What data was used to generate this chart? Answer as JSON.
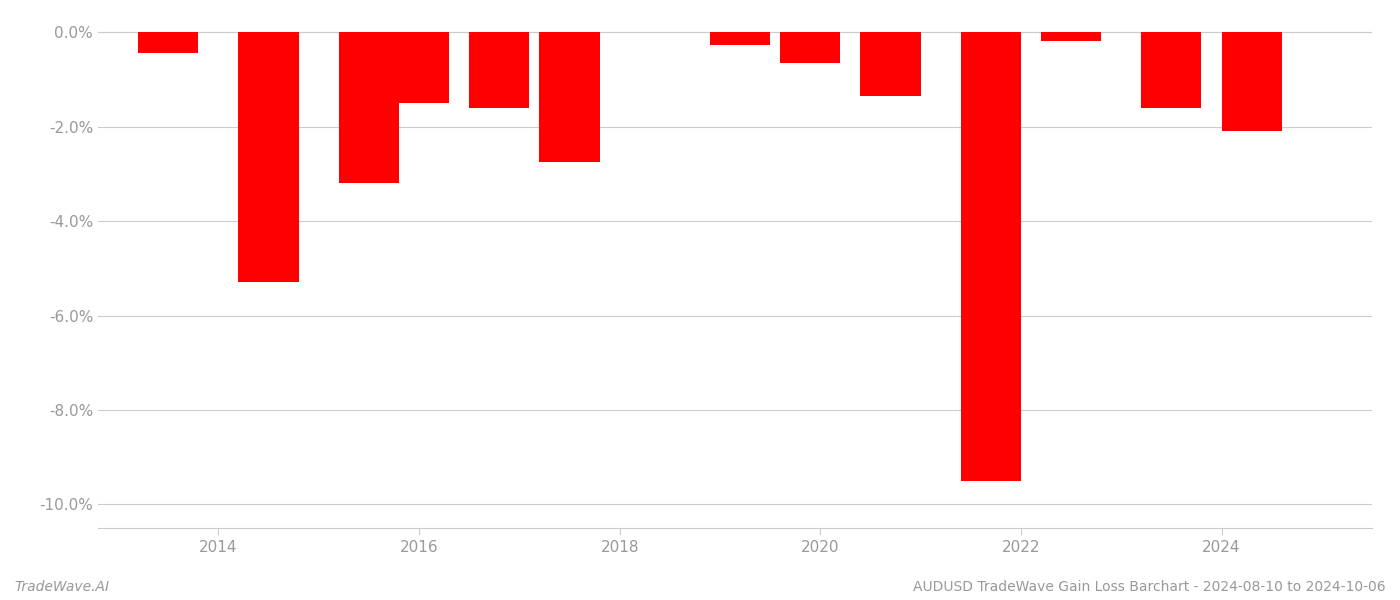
{
  "bar_positions": [
    2013.5,
    2014.5,
    2015.5,
    2016.0,
    2016.8,
    2017.5,
    2019.2,
    2019.9,
    2020.7,
    2021.7,
    2022.5,
    2023.5,
    2024.3
  ],
  "values": [
    -0.45,
    -5.3,
    -3.2,
    -1.5,
    -1.6,
    -2.75,
    -0.28,
    -0.65,
    -1.35,
    -9.5,
    -0.18,
    -1.6,
    -2.1
  ],
  "bar_color": "#ff0000",
  "background_color": "#ffffff",
  "ylim": [
    -10.5,
    0.3
  ],
  "yticks": [
    0.0,
    -2.0,
    -4.0,
    -6.0,
    -8.0,
    -10.0
  ],
  "xticks": [
    2014,
    2016,
    2018,
    2020,
    2022,
    2024
  ],
  "bar_width": 0.6,
  "title": "AUDUSD TradeWave Gain Loss Barchart - 2024-08-10 to 2024-10-06",
  "footer_left": "TradeWave.AI",
  "grid_color": "#cccccc",
  "tick_color": "#999999",
  "label_fontsize": 11,
  "footer_fontsize": 10,
  "xlim": [
    2012.8,
    2025.5
  ]
}
